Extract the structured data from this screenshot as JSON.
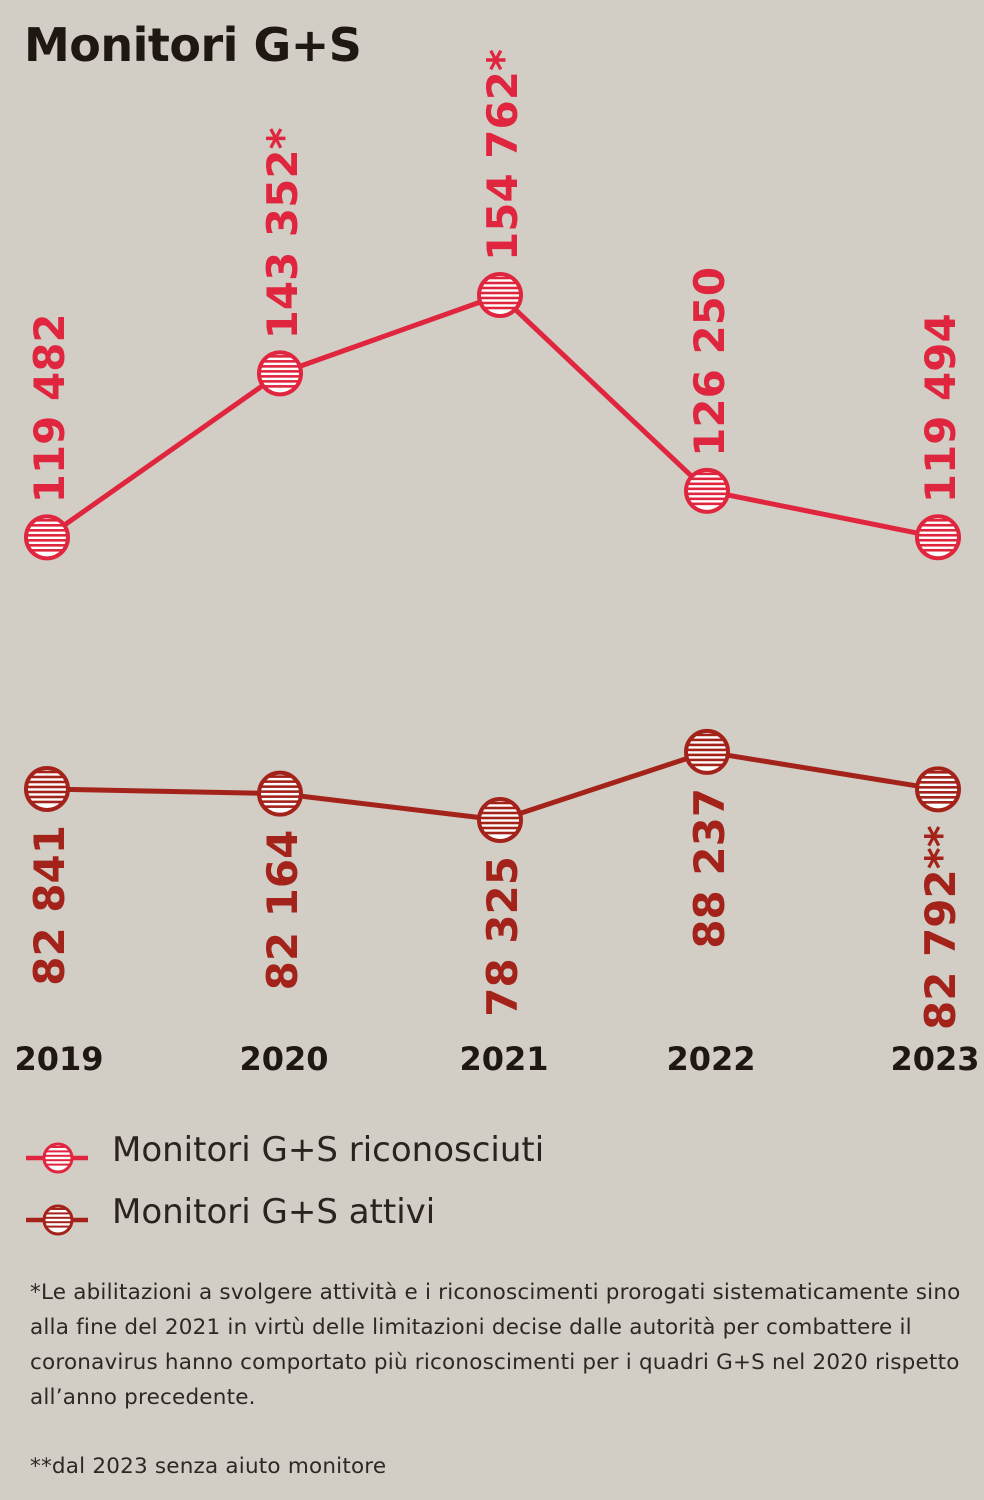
{
  "title": "Monitori G+S",
  "chart_data": {
    "type": "line",
    "x": [
      "2019",
      "2020",
      "2021",
      "2022",
      "2023"
    ],
    "series": [
      {
        "name": "Monitori G+S riconosciuti",
        "values": [
          119482,
          143352,
          154762,
          126250,
          119494
        ],
        "labels": [
          "119 482",
          "143 352*",
          "154 762*",
          "126 250",
          "119 494"
        ],
        "color": "#e0263f"
      },
      {
        "name": "Monitori G+S attivi",
        "values": [
          82841,
          82164,
          78325,
          88237,
          82792
        ],
        "labels": [
          "82 841",
          "82 164",
          "78 325",
          "88 237",
          "82 792**"
        ],
        "color": "#a3231b"
      }
    ],
    "grid": false,
    "legend": "bottom-left"
  },
  "legend": {
    "items": [
      {
        "label": "Monitori G+S riconosciuti",
        "color": "#e0263f",
        "icon": "striped-circle-icon"
      },
      {
        "label": "Monitori G+S attivi",
        "color": "#a3231b",
        "icon": "striped-circle-icon"
      }
    ]
  },
  "notes": {
    "note1": "*Le abilitazioni a svolgere attività e i riconoscimenti prorogati sistematicamente sino alla fine del 2021 in virtù delle limitazioni decise dalle autorità per combattere il coronavirus hanno comportato più riconoscimenti per i quadri G+S nel 2020 rispetto all’anno precedente.",
    "note2": "**dal 2023 senza aiuto monitore"
  }
}
